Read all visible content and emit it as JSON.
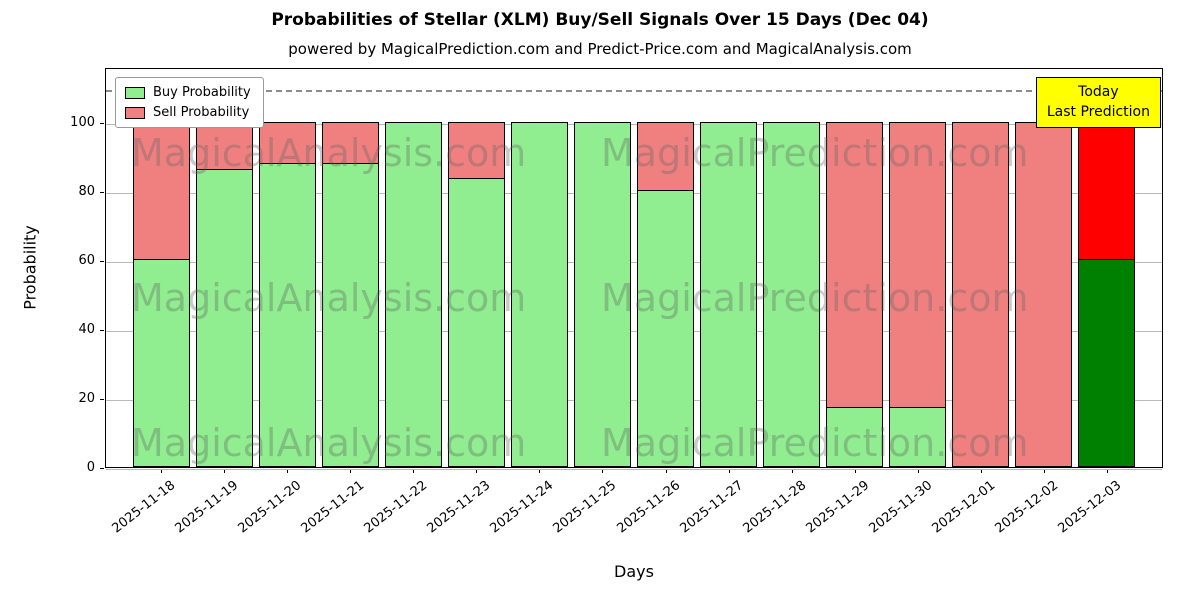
{
  "title": "Probabilities of Stellar (XLM) Buy/Sell Signals Over 15 Days (Dec 04)",
  "subtitle": "powered by MagicalPrediction.com and Predict-Price.com and MagicalAnalysis.com",
  "annotation": {
    "line1": "Today",
    "line2": "Last Prediction",
    "bg_color": "#ffff00"
  },
  "legend": [
    {
      "label": "Buy Probability",
      "color": "#90ee90"
    },
    {
      "label": "Sell Probability",
      "color": "#f08080"
    }
  ],
  "watermarks": {
    "left": "MagicalAnalysis.com",
    "right": "MagicalPrediction.com"
  },
  "chart_data": {
    "type": "bar",
    "stacked": true,
    "title": "Probabilities of Stellar (XLM) Buy/Sell Signals Over 15 Days (Dec 04)",
    "xlabel": "Days",
    "ylabel": "Probability",
    "ylim": [
      0,
      116
    ],
    "yticks": [
      0,
      20,
      40,
      60,
      80,
      100
    ],
    "grid": "horizontal",
    "legend_position": "upper left",
    "dashed_line_y": 110,
    "categories": [
      "2025-11-18",
      "2025-11-19",
      "2025-11-20",
      "2025-11-21",
      "2025-11-22",
      "2025-11-23",
      "2025-11-24",
      "2025-11-25",
      "2025-11-26",
      "2025-11-27",
      "2025-11-28",
      "2025-11-29",
      "2025-11-30",
      "2025-12-01",
      "2025-12-02",
      "2025-12-03"
    ],
    "series": [
      {
        "name": "Buy Probability",
        "color": "#90ee90",
        "values": [
          60,
          86,
          88,
          88,
          100,
          83.5,
          100,
          100,
          80,
          100,
          100,
          17,
          17,
          0,
          0,
          60
        ]
      },
      {
        "name": "Sell Probability",
        "color": "#f08080",
        "values": [
          40,
          14,
          12,
          12,
          0,
          16.5,
          0,
          0,
          20,
          0,
          0,
          83,
          83,
          100,
          100,
          40
        ]
      }
    ],
    "last_bar_colors": {
      "buy": "#008000",
      "sell": "#ff0000"
    }
  }
}
